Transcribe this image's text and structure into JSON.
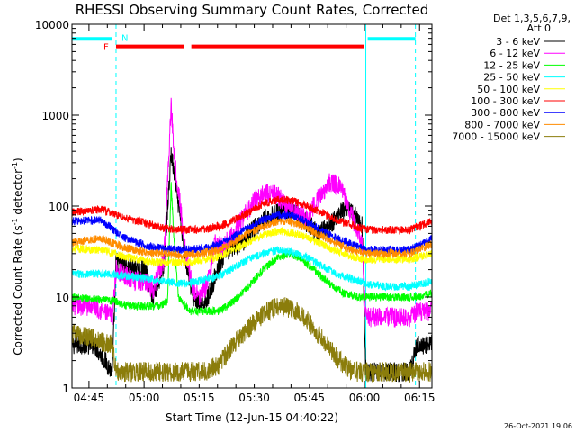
{
  "chart_data": {
    "type": "line",
    "title": "RHESSI Observing Summary Count Rates, Corrected",
    "xlabel": "Start Time (12-Jun-15 04:40:22)",
    "ylabel": "Corrected Count Rate (s-1 detector-1)",
    "ylabel_main": "Corrected Count Rate (s",
    "ylabel_exp1": "-1",
    "ylabel_mid": " detector",
    "ylabel_exp2": "-1",
    "ylabel_end": ")",
    "yscale": "log",
    "ylim": [
      1,
      10000
    ],
    "xlim_minutes": [
      0,
      98
    ],
    "x_ticks": [
      {
        "label": "04:45",
        "t": 4.63
      },
      {
        "label": "05:00",
        "t": 19.63
      },
      {
        "label": "05:15",
        "t": 34.63
      },
      {
        "label": "05:30",
        "t": 49.63
      },
      {
        "label": "05:45",
        "t": 64.63
      },
      {
        "label": "06:00",
        "t": 79.63
      },
      {
        "label": "06:15",
        "t": 94.63
      }
    ],
    "y_ticks": [
      {
        "label": "1",
        "v": 1
      },
      {
        "label": "10",
        "v": 10
      },
      {
        "label": "100",
        "v": 100
      },
      {
        "label": "1000",
        "v": 1000
      },
      {
        "label": "10000",
        "v": 10000
      }
    ],
    "legend_header": [
      "Det 1,3,5,6,7,9,",
      "Att 0"
    ],
    "series": [
      {
        "name": "3 - 6 keV",
        "color": "#000000",
        "points": [
          [
            0,
            3
          ],
          [
            6,
            3
          ],
          [
            11,
            1.5
          ],
          [
            12,
            25
          ],
          [
            17,
            20
          ],
          [
            20,
            20
          ],
          [
            22,
            10
          ],
          [
            25,
            20
          ],
          [
            27,
            380
          ],
          [
            28,
            200
          ],
          [
            29,
            100
          ],
          [
            31,
            25
          ],
          [
            33,
            10
          ],
          [
            35,
            8
          ],
          [
            37,
            10
          ],
          [
            40,
            22
          ],
          [
            43,
            35
          ],
          [
            46,
            38
          ],
          [
            49,
            55
          ],
          [
            52,
            70
          ],
          [
            55,
            80
          ],
          [
            58,
            90
          ],
          [
            61,
            80
          ],
          [
            64,
            65
          ],
          [
            67,
            50
          ],
          [
            70,
            60
          ],
          [
            73,
            85
          ],
          [
            76,
            90
          ],
          [
            79,
            60
          ],
          [
            80,
            1.5
          ],
          [
            92,
            1.5
          ],
          [
            94,
            3
          ],
          [
            98,
            3
          ]
        ]
      },
      {
        "name": "6 - 12 keV",
        "color": "#ff00ff",
        "points": [
          [
            0,
            8
          ],
          [
            6,
            8
          ],
          [
            11,
            6
          ],
          [
            12,
            20
          ],
          [
            17,
            15
          ],
          [
            20,
            15
          ],
          [
            22,
            12
          ],
          [
            25,
            25
          ],
          [
            27,
            1300
          ],
          [
            28,
            300
          ],
          [
            29,
            150
          ],
          [
            31,
            30
          ],
          [
            33,
            12
          ],
          [
            35,
            10
          ],
          [
            37,
            15
          ],
          [
            39,
            40
          ],
          [
            41,
            35
          ],
          [
            44,
            50
          ],
          [
            47,
            80
          ],
          [
            50,
            120
          ],
          [
            53,
            140
          ],
          [
            56,
            130
          ],
          [
            58,
            105
          ],
          [
            61,
            90
          ],
          [
            64,
            75
          ],
          [
            67,
            120
          ],
          [
            70,
            180
          ],
          [
            73,
            170
          ],
          [
            76,
            80
          ],
          [
            79,
            40
          ],
          [
            80,
            6
          ],
          [
            92,
            6
          ],
          [
            94,
            7
          ],
          [
            98,
            7
          ]
        ]
      },
      {
        "name": "12 - 25 keV",
        "color": "#00ff00",
        "points": [
          [
            0,
            10
          ],
          [
            12,
            9
          ],
          [
            15,
            8
          ],
          [
            20,
            8
          ],
          [
            24,
            8
          ],
          [
            26,
            9
          ],
          [
            27,
            170
          ],
          [
            28,
            30
          ],
          [
            29,
            10
          ],
          [
            32,
            7
          ],
          [
            40,
            7
          ],
          [
            44,
            9
          ],
          [
            48,
            13
          ],
          [
            52,
            20
          ],
          [
            56,
            27
          ],
          [
            59,
            30
          ],
          [
            62,
            27
          ],
          [
            66,
            20
          ],
          [
            70,
            14
          ],
          [
            74,
            11
          ],
          [
            78,
            10
          ],
          [
            82,
            10
          ],
          [
            88,
            10
          ],
          [
            94,
            10
          ],
          [
            98,
            11
          ]
        ]
      },
      {
        "name": "25 - 50 keV",
        "color": "#00ffff",
        "points": [
          [
            0,
            18
          ],
          [
            10,
            18
          ],
          [
            15,
            17
          ],
          [
            20,
            16
          ],
          [
            25,
            15
          ],
          [
            30,
            14
          ],
          [
            35,
            15
          ],
          [
            40,
            17
          ],
          [
            44,
            21
          ],
          [
            48,
            26
          ],
          [
            52,
            30
          ],
          [
            56,
            33
          ],
          [
            60,
            31
          ],
          [
            64,
            27
          ],
          [
            68,
            22
          ],
          [
            72,
            18
          ],
          [
            76,
            16
          ],
          [
            80,
            14
          ],
          [
            86,
            13
          ],
          [
            92,
            13
          ],
          [
            98,
            15
          ]
        ]
      },
      {
        "name": "50 - 100 keV",
        "color": "#ffff00",
        "points": [
          [
            0,
            34
          ],
          [
            8,
            33
          ],
          [
            14,
            28
          ],
          [
            20,
            25
          ],
          [
            25,
            24
          ],
          [
            30,
            24
          ],
          [
            35,
            25
          ],
          [
            40,
            28
          ],
          [
            44,
            33
          ],
          [
            48,
            40
          ],
          [
            52,
            48
          ],
          [
            56,
            53
          ],
          [
            60,
            51
          ],
          [
            64,
            45
          ],
          [
            68,
            38
          ],
          [
            72,
            32
          ],
          [
            76,
            28
          ],
          [
            80,
            26
          ],
          [
            86,
            26
          ],
          [
            92,
            26
          ],
          [
            98,
            30
          ]
        ]
      },
      {
        "name": "100 - 300 keV",
        "color": "#ff0000",
        "points": [
          [
            0,
            85
          ],
          [
            8,
            92
          ],
          [
            14,
            75
          ],
          [
            20,
            65
          ],
          [
            25,
            57
          ],
          [
            30,
            55
          ],
          [
            35,
            55
          ],
          [
            40,
            60
          ],
          [
            44,
            70
          ],
          [
            48,
            85
          ],
          [
            52,
            105
          ],
          [
            56,
            118
          ],
          [
            60,
            115
          ],
          [
            64,
            100
          ],
          [
            68,
            85
          ],
          [
            72,
            70
          ],
          [
            76,
            62
          ],
          [
            80,
            55
          ],
          [
            86,
            55
          ],
          [
            92,
            55
          ],
          [
            98,
            68
          ]
        ]
      },
      {
        "name": "300 - 800 keV",
        "color": "#0000ff",
        "points": [
          [
            0,
            68
          ],
          [
            8,
            70
          ],
          [
            14,
            45
          ],
          [
            20,
            37
          ],
          [
            25,
            34
          ],
          [
            30,
            33
          ],
          [
            35,
            34
          ],
          [
            40,
            38
          ],
          [
            44,
            46
          ],
          [
            48,
            58
          ],
          [
            52,
            70
          ],
          [
            56,
            80
          ],
          [
            60,
            78
          ],
          [
            64,
            66
          ],
          [
            68,
            54
          ],
          [
            72,
            44
          ],
          [
            76,
            38
          ],
          [
            80,
            33
          ],
          [
            86,
            33
          ],
          [
            92,
            33
          ],
          [
            98,
            44
          ]
        ]
      },
      {
        "name": "800 - 7000 keV",
        "color": "#ff8c00",
        "points": [
          [
            0,
            40
          ],
          [
            8,
            44
          ],
          [
            14,
            35
          ],
          [
            20,
            31
          ],
          [
            25,
            30
          ],
          [
            30,
            29
          ],
          [
            35,
            30
          ],
          [
            40,
            33
          ],
          [
            44,
            40
          ],
          [
            48,
            50
          ],
          [
            52,
            60
          ],
          [
            56,
            68
          ],
          [
            60,
            66
          ],
          [
            64,
            57
          ],
          [
            68,
            47
          ],
          [
            72,
            39
          ],
          [
            76,
            33
          ],
          [
            80,
            30
          ],
          [
            86,
            30
          ],
          [
            92,
            30
          ],
          [
            98,
            38
          ]
        ]
      },
      {
        "name": "7000 - 15000 keV",
        "color": "#8b7d0b",
        "points": [
          [
            0,
            4
          ],
          [
            6,
            3.5
          ],
          [
            11,
            3
          ],
          [
            12,
            1.5
          ],
          [
            36,
            1.5
          ],
          [
            40,
            1.8
          ],
          [
            44,
            3
          ],
          [
            48,
            4.5
          ],
          [
            52,
            6.5
          ],
          [
            56,
            8
          ],
          [
            60,
            7.5
          ],
          [
            64,
            5.5
          ],
          [
            68,
            3.5
          ],
          [
            72,
            2.2
          ],
          [
            76,
            1.5
          ],
          [
            98,
            1.5
          ]
        ]
      }
    ],
    "flag_bars": [
      {
        "label": "",
        "color": "#00ffff",
        "t_start": 0,
        "t_end": 11.0,
        "v": 6900
      },
      {
        "label": "F",
        "color": "#ff0000",
        "t_start": 12.0,
        "t_end": 30.5,
        "v": 5700
      },
      {
        "label": "",
        "color": "#ff0000",
        "t_start": 32.5,
        "t_end": 79.5,
        "v": 5700
      },
      {
        "label": "",
        "color": "#00ffff",
        "t_start": 80.5,
        "t_end": 93.5,
        "v": 6900
      }
    ],
    "night_marker": {
      "label": "N",
      "color": "#00ffff"
    },
    "boundaries": [
      {
        "t": 0,
        "style": "solid"
      },
      {
        "t": 12.0,
        "style": "dashed"
      },
      {
        "t": 80.0,
        "style": "solid"
      },
      {
        "t": 93.5,
        "style": "dashed"
      }
    ],
    "timestamp": "26-Oct-2021 19:06"
  }
}
